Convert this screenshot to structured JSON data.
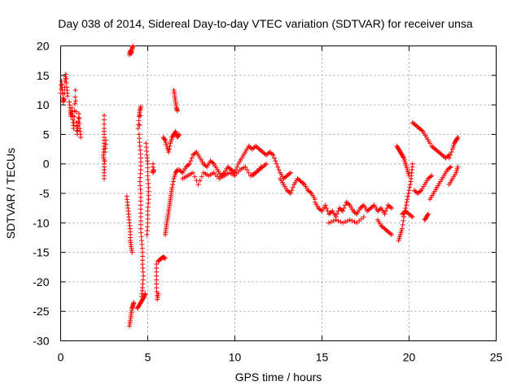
{
  "chart_data": {
    "type": "scatter",
    "title": "Day 038 of 2014, Sidereal Day-to-day VTEC variation (SDTVAR) for receiver unsa",
    "xlabel": "GPS time / hours",
    "ylabel": "SDTVAR / TECUs",
    "xlim": [
      0,
      25
    ],
    "ylim": [
      -30,
      20
    ],
    "xticks": [
      0,
      5,
      10,
      15,
      20,
      25
    ],
    "yticks": [
      20,
      15,
      10,
      5,
      0,
      -5,
      -10,
      -15,
      -20,
      -25,
      -30
    ],
    "grid": true,
    "marker": "+",
    "color": "#ff0000",
    "segments": [
      [
        [
          0.0,
          12
        ],
        [
          0.05,
          14
        ],
        [
          0.1,
          12.5
        ],
        [
          0.15,
          10.5
        ],
        [
          0.2,
          11
        ],
        [
          0.25,
          14
        ],
        [
          0.3,
          15.2
        ],
        [
          0.35,
          13
        ],
        [
          0.4,
          11.5
        ]
      ],
      [
        [
          0.5,
          10.5
        ],
        [
          0.55,
          9
        ],
        [
          0.6,
          8
        ],
        [
          0.65,
          9.5
        ],
        [
          0.7,
          7.5
        ],
        [
          0.75,
          6
        ],
        [
          0.8,
          9
        ],
        [
          0.85,
          12.5
        ],
        [
          0.9,
          7
        ],
        [
          0.95,
          5
        ],
        [
          1.0,
          6.5
        ],
        [
          1.05,
          8.5
        ],
        [
          1.1,
          6
        ],
        [
          1.15,
          4.5
        ]
      ],
      [
        [
          2.5,
          8.2
        ],
        [
          2.5,
          6
        ],
        [
          2.5,
          4.5
        ],
        [
          2.5,
          3
        ],
        [
          2.45,
          1.5
        ],
        [
          2.5,
          0.5
        ],
        [
          2.5,
          -1
        ],
        [
          2.5,
          -2.5
        ],
        [
          2.55,
          2
        ],
        [
          2.6,
          4
        ]
      ],
      [
        [
          3.8,
          -5.5
        ],
        [
          3.85,
          -7
        ],
        [
          3.9,
          -8.5
        ],
        [
          3.95,
          -10
        ],
        [
          4.0,
          -11.5
        ],
        [
          4.0,
          -13
        ],
        [
          4.05,
          -14
        ],
        [
          4.1,
          -15
        ]
      ],
      [
        [
          3.95,
          18.5
        ],
        [
          4.0,
          19.2
        ],
        [
          4.05,
          18.7
        ],
        [
          4.1,
          19.5
        ],
        [
          4.15,
          20.0
        ]
      ],
      [
        [
          3.95,
          -27.5
        ],
        [
          4.0,
          -26.5
        ],
        [
          4.05,
          -25.5
        ],
        [
          4.1,
          -24.5
        ],
        [
          4.15,
          -24
        ],
        [
          4.2,
          -23.5
        ]
      ],
      [
        [
          4.4,
          -24.5
        ],
        [
          4.5,
          -24
        ],
        [
          4.6,
          -23.5
        ],
        [
          4.7,
          -23
        ],
        [
          4.8,
          -22.5
        ],
        [
          4.85,
          -22
        ]
      ],
      [
        [
          4.45,
          6
        ],
        [
          4.5,
          8
        ],
        [
          4.55,
          9
        ],
        [
          4.6,
          9.7
        ],
        [
          4.5,
          5
        ],
        [
          4.55,
          3
        ],
        [
          4.6,
          1
        ],
        [
          4.6,
          -1
        ],
        [
          4.55,
          -3
        ],
        [
          4.6,
          -5
        ],
        [
          4.6,
          -7
        ],
        [
          4.6,
          -9
        ],
        [
          4.6,
          -11
        ],
        [
          4.65,
          -13
        ],
        [
          4.7,
          -15
        ],
        [
          4.7,
          -17
        ],
        [
          4.75,
          -19
        ],
        [
          4.7,
          -21
        ],
        [
          4.65,
          -22.5
        ]
      ],
      [
        [
          4.9,
          3.5
        ],
        [
          4.95,
          1.5
        ],
        [
          5.0,
          0
        ],
        [
          5.0,
          -2
        ],
        [
          5.05,
          -4
        ],
        [
          5.05,
          -6
        ],
        [
          5.0,
          -8
        ],
        [
          5.0,
          -10
        ],
        [
          4.95,
          -12
        ]
      ],
      [
        [
          5.3,
          0
        ],
        [
          5.3,
          -1.5
        ],
        [
          5.35,
          -1
        ]
      ],
      [
        [
          5.5,
          -17
        ],
        [
          5.5,
          -19
        ],
        [
          5.5,
          -21
        ],
        [
          5.55,
          -23
        ],
        [
          5.6,
          -22
        ]
      ],
      [
        [
          5.6,
          -16.5
        ],
        [
          5.7,
          -16.2
        ],
        [
          5.8,
          -16
        ],
        [
          5.9,
          -15.8
        ],
        [
          6.0,
          -16
        ]
      ],
      [
        [
          5.9,
          4.5
        ],
        [
          6.0,
          4
        ],
        [
          6.1,
          3
        ],
        [
          6.2,
          2
        ],
        [
          6.3,
          3.5
        ],
        [
          6.4,
          4.5
        ],
        [
          6.5,
          5
        ],
        [
          6.6,
          5.5
        ],
        [
          6.7,
          4.5
        ],
        [
          6.8,
          5
        ]
      ],
      [
        [
          6.0,
          -12
        ],
        [
          6.05,
          -11
        ],
        [
          6.1,
          -10
        ],
        [
          6.15,
          -9
        ],
        [
          6.2,
          -8
        ],
        [
          6.25,
          -7
        ],
        [
          6.3,
          -6
        ],
        [
          6.35,
          -5
        ],
        [
          6.4,
          -4
        ],
        [
          6.5,
          -2.5
        ],
        [
          6.6,
          -1.5
        ],
        [
          6.7,
          -1
        ]
      ],
      [
        [
          6.5,
          12.5
        ],
        [
          6.55,
          11.5
        ],
        [
          6.6,
          10.5
        ],
        [
          6.65,
          9.5
        ],
        [
          6.7,
          9
        ]
      ],
      [
        [
          6.8,
          -1
        ],
        [
          7.0,
          -1.5
        ],
        [
          7.2,
          -0.5
        ],
        [
          7.4,
          0
        ],
        [
          7.6,
          1.5
        ],
        [
          7.8,
          2
        ],
        [
          8.0,
          1
        ],
        [
          8.2,
          0
        ],
        [
          8.4,
          -0.5
        ],
        [
          8.6,
          0.5
        ],
        [
          8.8,
          0
        ],
        [
          9.0,
          -1
        ],
        [
          9.2,
          -2
        ],
        [
          9.4,
          -1.5
        ],
        [
          9.6,
          -0.5
        ],
        [
          9.8,
          -1
        ],
        [
          10.0,
          -1.5
        ],
        [
          10.2,
          0
        ],
        [
          10.4,
          1
        ],
        [
          10.6,
          2
        ],
        [
          10.8,
          3
        ],
        [
          11.0,
          2.5
        ],
        [
          11.2,
          3
        ],
        [
          11.4,
          2.5
        ],
        [
          11.6,
          2
        ],
        [
          11.8,
          1.5
        ],
        [
          12.0,
          2
        ],
        [
          12.2,
          1.5
        ],
        [
          12.4,
          0
        ],
        [
          12.6,
          -1.5
        ],
        [
          12.8,
          -2.5
        ],
        [
          13.0,
          -2
        ],
        [
          13.2,
          -1.5
        ]
      ],
      [
        [
          7.0,
          -2.5
        ],
        [
          7.3,
          -2
        ],
        [
          7.6,
          -1.5
        ],
        [
          7.9,
          -3.5
        ],
        [
          8.2,
          -1.5
        ],
        [
          8.5,
          -2
        ],
        [
          8.8,
          -1.5
        ],
        [
          9.1,
          -2.5
        ],
        [
          9.4,
          -2
        ],
        [
          9.7,
          -1.5
        ],
        [
          10.0,
          -2
        ],
        [
          10.3,
          -1
        ],
        [
          10.6,
          -0.5
        ],
        [
          10.9,
          -2
        ],
        [
          11.2,
          -1.5
        ],
        [
          11.5,
          -0.5
        ]
      ],
      [
        [
          11.0,
          -2
        ],
        [
          11.2,
          -1.5
        ],
        [
          11.4,
          -1
        ],
        [
          11.6,
          -0.5
        ],
        [
          11.8,
          0
        ]
      ],
      [
        [
          12.6,
          -2.5
        ],
        [
          12.8,
          -3.5
        ],
        [
          13.0,
          -4.5
        ],
        [
          13.2,
          -5
        ],
        [
          13.4,
          -3.5
        ],
        [
          13.6,
          -2.5
        ],
        [
          13.8,
          -3
        ],
        [
          14.0,
          -3.5
        ],
        [
          14.2,
          -4.5
        ],
        [
          14.4,
          -5
        ],
        [
          14.6,
          -6
        ]
      ],
      [
        [
          14.6,
          -6.5
        ],
        [
          14.8,
          -7.5
        ],
        [
          15.0,
          -8
        ],
        [
          15.2,
          -7
        ],
        [
          15.4,
          -8.5
        ],
        [
          15.6,
          -8
        ],
        [
          15.8,
          -9
        ],
        [
          16.0,
          -7.5
        ],
        [
          16.2,
          -8
        ],
        [
          16.4,
          -6.5
        ],
        [
          16.6,
          -7
        ],
        [
          16.8,
          -8
        ],
        [
          17.0,
          -8.5
        ],
        [
          17.2,
          -7.5
        ],
        [
          17.4,
          -7
        ],
        [
          17.6,
          -8
        ],
        [
          17.8,
          -7.5
        ],
        [
          18.0,
          -7
        ],
        [
          18.2,
          -8
        ],
        [
          18.4,
          -7.5
        ],
        [
          18.6,
          -8.5
        ],
        [
          18.8,
          -7
        ],
        [
          19.0,
          -7.5
        ]
      ],
      [
        [
          15.4,
          -10
        ],
        [
          15.8,
          -9.5
        ],
        [
          16.2,
          -10
        ],
        [
          16.6,
          -9.5
        ],
        [
          17.0,
          -10
        ],
        [
          17.4,
          -9
        ]
      ],
      [
        [
          18.2,
          -9.5
        ],
        [
          18.4,
          -10.5
        ],
        [
          18.6,
          -11
        ],
        [
          18.8,
          -11.5
        ],
        [
          19.0,
          -12
        ]
      ],
      [
        [
          19.3,
          3
        ],
        [
          19.4,
          2.5
        ],
        [
          19.5,
          2
        ],
        [
          19.6,
          1.5
        ],
        [
          19.7,
          1
        ],
        [
          19.8,
          0
        ],
        [
          19.9,
          -1
        ],
        [
          20.0,
          -2
        ]
      ],
      [
        [
          19.4,
          -13
        ],
        [
          19.5,
          -12
        ],
        [
          19.6,
          -11
        ],
        [
          19.7,
          -9
        ],
        [
          19.8,
          -7.5
        ],
        [
          19.9,
          -6
        ],
        [
          20.0,
          -4.5
        ],
        [
          20.1,
          -3
        ],
        [
          20.15,
          -1.5
        ],
        [
          20.2,
          0
        ]
      ],
      [
        [
          19.6,
          -8.5
        ],
        [
          19.8,
          -8
        ],
        [
          20.0,
          -8.5
        ],
        [
          20.2,
          -9
        ]
      ],
      [
        [
          20.2,
          7
        ],
        [
          20.4,
          6.5
        ],
        [
          20.6,
          6
        ],
        [
          20.8,
          5.5
        ],
        [
          21.0,
          4.5
        ],
        [
          21.2,
          3.5
        ]
      ],
      [
        [
          20.3,
          -4.5
        ],
        [
          20.5,
          -5
        ],
        [
          20.7,
          -4.5
        ],
        [
          20.9,
          -3.5
        ],
        [
          21.1,
          -2.5
        ],
        [
          21.3,
          -2
        ]
      ],
      [
        [
          20.9,
          -9.5
        ],
        [
          21.0,
          -9
        ],
        [
          21.1,
          -8.5
        ]
      ],
      [
        [
          21.2,
          -6
        ],
        [
          21.4,
          -5
        ],
        [
          21.6,
          -4
        ],
        [
          21.8,
          -3
        ],
        [
          22.0,
          -2
        ],
        [
          22.2,
          -1
        ],
        [
          22.4,
          -0.5
        ]
      ],
      [
        [
          21.3,
          3
        ],
        [
          21.5,
          2.5
        ],
        [
          21.7,
          2
        ],
        [
          21.9,
          1.5
        ],
        [
          22.1,
          1
        ],
        [
          22.3,
          1.5
        ]
      ],
      [
        [
          22.3,
          -3.5
        ],
        [
          22.5,
          -2.5
        ],
        [
          22.7,
          -1.5
        ],
        [
          22.8,
          -0.5
        ]
      ],
      [
        [
          22.3,
          1
        ],
        [
          22.5,
          2.5
        ],
        [
          22.6,
          3.5
        ],
        [
          22.7,
          4
        ],
        [
          22.8,
          4.5
        ]
      ]
    ]
  }
}
